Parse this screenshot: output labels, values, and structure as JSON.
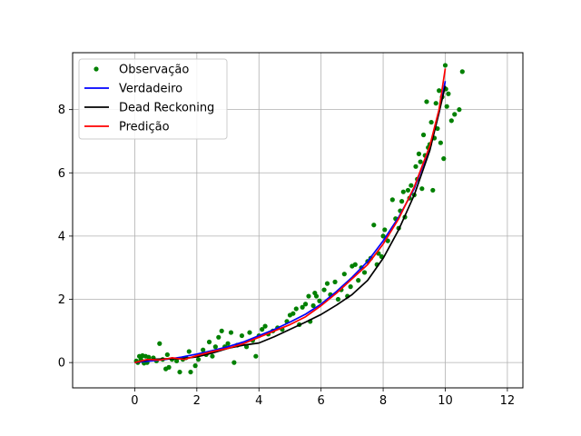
{
  "chart_data": {
    "type": "line",
    "title": "",
    "xlabel": "",
    "ylabel": "",
    "xlim": [
      -2,
      12.5
    ],
    "ylim": [
      -0.8,
      9.8
    ],
    "xticks": [
      0,
      2,
      4,
      6,
      8,
      10,
      12
    ],
    "yticks": [
      0,
      2,
      4,
      6,
      8
    ],
    "grid": true,
    "legend_position": "top-left",
    "series": [
      {
        "name": "Observação",
        "kind": "scatter",
        "color": "#008000",
        "points": [
          [
            0.05,
            0.05
          ],
          [
            0.1,
            0.0
          ],
          [
            0.15,
            0.2
          ],
          [
            0.2,
            0.1
          ],
          [
            0.25,
            0.22
          ],
          [
            0.3,
            -0.02
          ],
          [
            0.35,
            0.2
          ],
          [
            0.4,
            0.0
          ],
          [
            0.45,
            0.17
          ],
          [
            0.6,
            0.15
          ],
          [
            0.7,
            0.05
          ],
          [
            0.8,
            0.6
          ],
          [
            0.9,
            0.1
          ],
          [
            1.0,
            -0.2
          ],
          [
            1.05,
            0.25
          ],
          [
            1.1,
            -0.15
          ],
          [
            1.2,
            0.1
          ],
          [
            1.35,
            0.05
          ],
          [
            1.45,
            -0.3
          ],
          [
            1.55,
            0.1
          ],
          [
            1.65,
            0.15
          ],
          [
            1.75,
            0.35
          ],
          [
            1.8,
            -0.3
          ],
          [
            1.95,
            -0.1
          ],
          [
            2.05,
            0.1
          ],
          [
            2.2,
            0.4
          ],
          [
            2.3,
            0.25
          ],
          [
            2.4,
            0.65
          ],
          [
            2.5,
            0.2
          ],
          [
            2.6,
            0.5
          ],
          [
            2.7,
            0.8
          ],
          [
            2.8,
            1.0
          ],
          [
            2.9,
            0.5
          ],
          [
            3.0,
            0.6
          ],
          [
            3.1,
            0.95
          ],
          [
            3.2,
            0.0
          ],
          [
            3.3,
            0.55
          ],
          [
            3.45,
            0.85
          ],
          [
            3.6,
            0.5
          ],
          [
            3.7,
            0.95
          ],
          [
            3.8,
            0.7
          ],
          [
            3.9,
            0.2
          ],
          [
            4.0,
            0.85
          ],
          [
            4.1,
            1.05
          ],
          [
            4.2,
            1.15
          ],
          [
            4.3,
            0.9
          ],
          [
            4.45,
            1.0
          ],
          [
            4.6,
            1.1
          ],
          [
            4.75,
            1.05
          ],
          [
            4.9,
            1.3
          ],
          [
            5.0,
            1.5
          ],
          [
            5.1,
            1.55
          ],
          [
            5.2,
            1.7
          ],
          [
            5.3,
            1.2
          ],
          [
            5.4,
            1.75
          ],
          [
            5.5,
            1.85
          ],
          [
            5.6,
            2.1
          ],
          [
            5.65,
            1.3
          ],
          [
            5.75,
            1.8
          ],
          [
            5.8,
            2.2
          ],
          [
            5.85,
            2.1
          ],
          [
            5.95,
            1.95
          ],
          [
            6.1,
            2.3
          ],
          [
            6.2,
            2.5
          ],
          [
            6.3,
            2.15
          ],
          [
            6.45,
            2.55
          ],
          [
            6.55,
            2.0
          ],
          [
            6.65,
            2.3
          ],
          [
            6.75,
            2.8
          ],
          [
            6.85,
            2.1
          ],
          [
            6.95,
            2.4
          ],
          [
            7.0,
            3.05
          ],
          [
            7.1,
            3.1
          ],
          [
            7.2,
            2.6
          ],
          [
            7.3,
            3.0
          ],
          [
            7.4,
            2.85
          ],
          [
            7.5,
            3.2
          ],
          [
            7.6,
            3.3
          ],
          [
            7.7,
            4.35
          ],
          [
            7.8,
            3.1
          ],
          [
            7.85,
            3.45
          ],
          [
            7.95,
            3.35
          ],
          [
            8.0,
            4.0
          ],
          [
            8.05,
            4.2
          ],
          [
            8.15,
            3.85
          ],
          [
            8.3,
            5.15
          ],
          [
            8.4,
            4.55
          ],
          [
            8.5,
            4.25
          ],
          [
            8.55,
            4.8
          ],
          [
            8.6,
            5.1
          ],
          [
            8.65,
            5.4
          ],
          [
            8.7,
            4.6
          ],
          [
            8.8,
            5.45
          ],
          [
            8.85,
            5.2
          ],
          [
            8.9,
            5.6
          ],
          [
            9.0,
            5.3
          ],
          [
            9.05,
            6.2
          ],
          [
            9.1,
            5.8
          ],
          [
            9.15,
            6.6
          ],
          [
            9.2,
            6.35
          ],
          [
            9.25,
            5.5
          ],
          [
            9.3,
            7.2
          ],
          [
            9.35,
            6.55
          ],
          [
            9.4,
            8.25
          ],
          [
            9.45,
            6.8
          ],
          [
            9.5,
            6.9
          ],
          [
            9.55,
            7.6
          ],
          [
            9.6,
            5.45
          ],
          [
            9.65,
            7.1
          ],
          [
            9.7,
            8.2
          ],
          [
            9.75,
            7.4
          ],
          [
            9.8,
            8.6
          ],
          [
            9.85,
            6.95
          ],
          [
            9.9,
            8.4
          ],
          [
            9.95,
            6.45
          ],
          [
            10.0,
            9.4
          ],
          [
            10.02,
            8.65
          ],
          [
            10.05,
            8.1
          ],
          [
            10.1,
            8.5
          ],
          [
            10.2,
            7.65
          ],
          [
            10.3,
            7.85
          ],
          [
            10.45,
            8.0
          ],
          [
            10.55,
            9.2
          ]
        ]
      },
      {
        "name": "Verdadeiro",
        "kind": "line",
        "color": "#0000ff",
        "points": [
          [
            0,
            0
          ],
          [
            0.5,
            0.05
          ],
          [
            1,
            0.1
          ],
          [
            1.5,
            0.17
          ],
          [
            2,
            0.27
          ],
          [
            2.5,
            0.38
          ],
          [
            3,
            0.5
          ],
          [
            3.5,
            0.65
          ],
          [
            4,
            0.85
          ],
          [
            4.5,
            1.05
          ],
          [
            5,
            1.28
          ],
          [
            5.5,
            1.53
          ],
          [
            6,
            1.85
          ],
          [
            6.5,
            2.25
          ],
          [
            7,
            2.7
          ],
          [
            7.5,
            3.2
          ],
          [
            8,
            3.85
          ],
          [
            8.5,
            4.6
          ],
          [
            9,
            5.5
          ],
          [
            9.5,
            6.8
          ],
          [
            9.8,
            7.9
          ],
          [
            10,
            8.9
          ]
        ]
      },
      {
        "name": "Dead Reckoning",
        "kind": "line",
        "color": "#000000",
        "points": [
          [
            0,
            0
          ],
          [
            0.5,
            0.1
          ],
          [
            1,
            0.12
          ],
          [
            1.5,
            0.12
          ],
          [
            2,
            0.18
          ],
          [
            2.5,
            0.3
          ],
          [
            3,
            0.45
          ],
          [
            3.5,
            0.55
          ],
          [
            4,
            0.62
          ],
          [
            4.5,
            0.82
          ],
          [
            5,
            1.05
          ],
          [
            5.5,
            1.28
          ],
          [
            6,
            1.52
          ],
          [
            6.5,
            1.82
          ],
          [
            7,
            2.15
          ],
          [
            7.5,
            2.6
          ],
          [
            8,
            3.3
          ],
          [
            8.5,
            4.2
          ],
          [
            9,
            5.3
          ],
          [
            9.5,
            6.7
          ],
          [
            9.8,
            7.9
          ],
          [
            10,
            8.75
          ]
        ]
      },
      {
        "name": "Predição",
        "kind": "line",
        "color": "#ff0000",
        "points": [
          [
            0,
            0
          ],
          [
            0.4,
            0.1
          ],
          [
            0.8,
            0.08
          ],
          [
            1.2,
            0.15
          ],
          [
            1.6,
            0.1
          ],
          [
            2,
            0.22
          ],
          [
            2.5,
            0.35
          ],
          [
            3,
            0.45
          ],
          [
            3.5,
            0.6
          ],
          [
            4,
            0.8
          ],
          [
            4.5,
            1.0
          ],
          [
            5,
            1.2
          ],
          [
            5.5,
            1.45
          ],
          [
            6,
            1.8
          ],
          [
            6.5,
            2.2
          ],
          [
            7,
            2.65
          ],
          [
            7.5,
            3.1
          ],
          [
            8,
            3.75
          ],
          [
            8.5,
            4.55
          ],
          [
            9,
            5.55
          ],
          [
            9.5,
            6.85
          ],
          [
            9.8,
            8.0
          ],
          [
            10,
            9.3
          ]
        ]
      }
    ]
  }
}
